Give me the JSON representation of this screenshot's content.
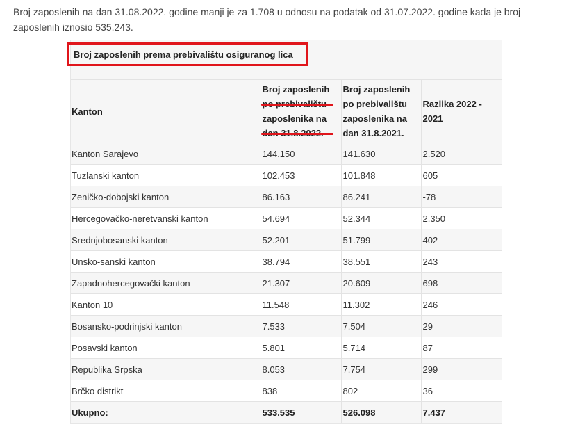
{
  "intro_text": "Broj zaposlenih na dan 31.08.2022. godine manji je za 1.708 u odnosu na podatak od 31.07.2022. godine kada je broj zaposlenih iznosio 535.243.",
  "table": {
    "title": "Broj zaposlenih prema prebivalištu osiguranog lica",
    "headers": [
      "Kanton",
      "Broj zaposlenih po prebivalištu zaposlenika na dan 31.8.2022.",
      "Broj zaposlenih po prebivalištu zaposlenika na dan 31.8.2021.",
      "Razlika 2022 - 2021"
    ],
    "rows": [
      [
        "Kanton Sarajevo",
        "144.150",
        "141.630",
        "2.520"
      ],
      [
        "Tuzlanski kanton",
        "102.453",
        "101.848",
        "605"
      ],
      [
        "Zeničko-dobojski kanton",
        "86.163",
        "86.241",
        "-78"
      ],
      [
        "Hercegovačko-neretvanski kanton",
        "54.694",
        "52.344",
        "2.350"
      ],
      [
        "Srednjobosanski kanton",
        "52.201",
        "51.799",
        "402"
      ],
      [
        "Unsko-sanski kanton",
        "38.794",
        "38.551",
        "243"
      ],
      [
        "Zapadnohercegovački  kanton",
        "21.307",
        "20.609",
        "698"
      ],
      [
        "Kanton 10",
        "11.548",
        "11.302",
        "246"
      ],
      [
        "Bosansko-podrinjski kanton",
        "7.533",
        "7.504",
        "29"
      ],
      [
        "Posavski kanton",
        "5.801",
        "5.714",
        "87"
      ],
      [
        "Republika Srpska",
        "8.053",
        "7.754",
        "299"
      ],
      [
        "Brčko distrikt",
        "838",
        "802",
        "36"
      ]
    ],
    "total": [
      "Ukupno:",
      "533.535",
      "526.098",
      "7.437"
    ]
  },
  "colors": {
    "highlight_red": "#e0151b",
    "row_stripe": "#f6f6f6"
  }
}
